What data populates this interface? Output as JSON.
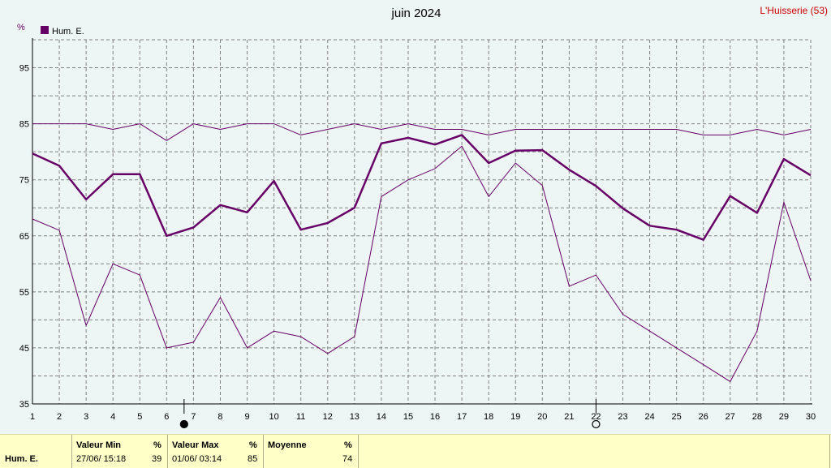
{
  "title": "juin 2024",
  "station": "L'Huisserie (53)",
  "unit": "%",
  "colors": {
    "series": "#660066",
    "background": "#eef5f5",
    "stats_bg": "#ffffc8",
    "station": "#cc0000"
  },
  "chart_data": {
    "type": "line",
    "x": [
      1,
      2,
      3,
      4,
      5,
      6,
      7,
      8,
      9,
      10,
      11,
      12,
      13,
      14,
      15,
      16,
      17,
      18,
      19,
      20,
      21,
      22,
      23,
      24,
      25,
      26,
      27,
      28,
      29,
      30
    ],
    "ylim": [
      35,
      100
    ],
    "yticks": [
      35,
      45,
      55,
      65,
      75,
      85,
      95
    ],
    "grid": true,
    "legend": "top-left",
    "series": [
      {
        "name": "Hum. E.",
        "role": "mean",
        "values": [
          79.7,
          77.5,
          71.5,
          76,
          76,
          65,
          66.5,
          70.5,
          69.2,
          74.8,
          66.1,
          67.3,
          70,
          81.5,
          82.5,
          81.3,
          83,
          78,
          80.2,
          80.3,
          76.8,
          73.9,
          69.9,
          66.8,
          66.1,
          64.3,
          72.1,
          69.1,
          78.7,
          75.8
        ]
      },
      {
        "role": "max",
        "values": [
          85,
          85,
          85,
          84,
          85,
          82,
          85,
          84,
          85,
          85,
          83,
          84,
          85,
          84,
          85,
          84,
          84,
          83,
          84,
          84,
          84,
          84,
          84,
          84,
          84,
          83,
          83,
          84,
          83,
          84
        ]
      },
      {
        "role": "min",
        "values": [
          68,
          66,
          49,
          60,
          58,
          45,
          46,
          54,
          45,
          48,
          47,
          44,
          47,
          72,
          75,
          77,
          81,
          72,
          78,
          74,
          56,
          58,
          51,
          48,
          45,
          42,
          39,
          48,
          71,
          57
        ]
      }
    ],
    "markers": [
      {
        "x": 6.65,
        "type": "full-moon-filled"
      },
      {
        "x": 22,
        "type": "new-moon-open"
      }
    ]
  },
  "stats": {
    "series_label": "Hum. E.",
    "min_header": "Valeur Min",
    "min_unit": "%",
    "min_date": "27/06/  15:18",
    "min_value": "39",
    "max_header": "Valeur Max",
    "max_unit": "%",
    "max_date": "01/06/  03:14",
    "max_value": "85",
    "avg_header": "Moyenne",
    "avg_unit": "%",
    "avg_value": "74"
  }
}
